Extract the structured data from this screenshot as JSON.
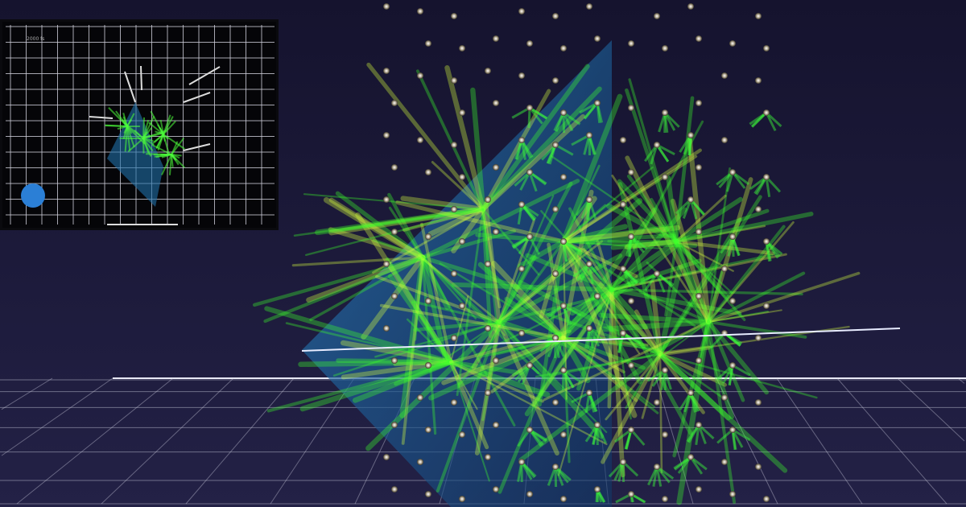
{
  "inset": {
    "time_label": "2000 fs"
  },
  "colors": {
    "background": "#1a1836",
    "cascade": "#4dff3a",
    "plane": "#1f6fa8",
    "grid": "#d8d8e8",
    "atom": "#c9c2b0"
  }
}
